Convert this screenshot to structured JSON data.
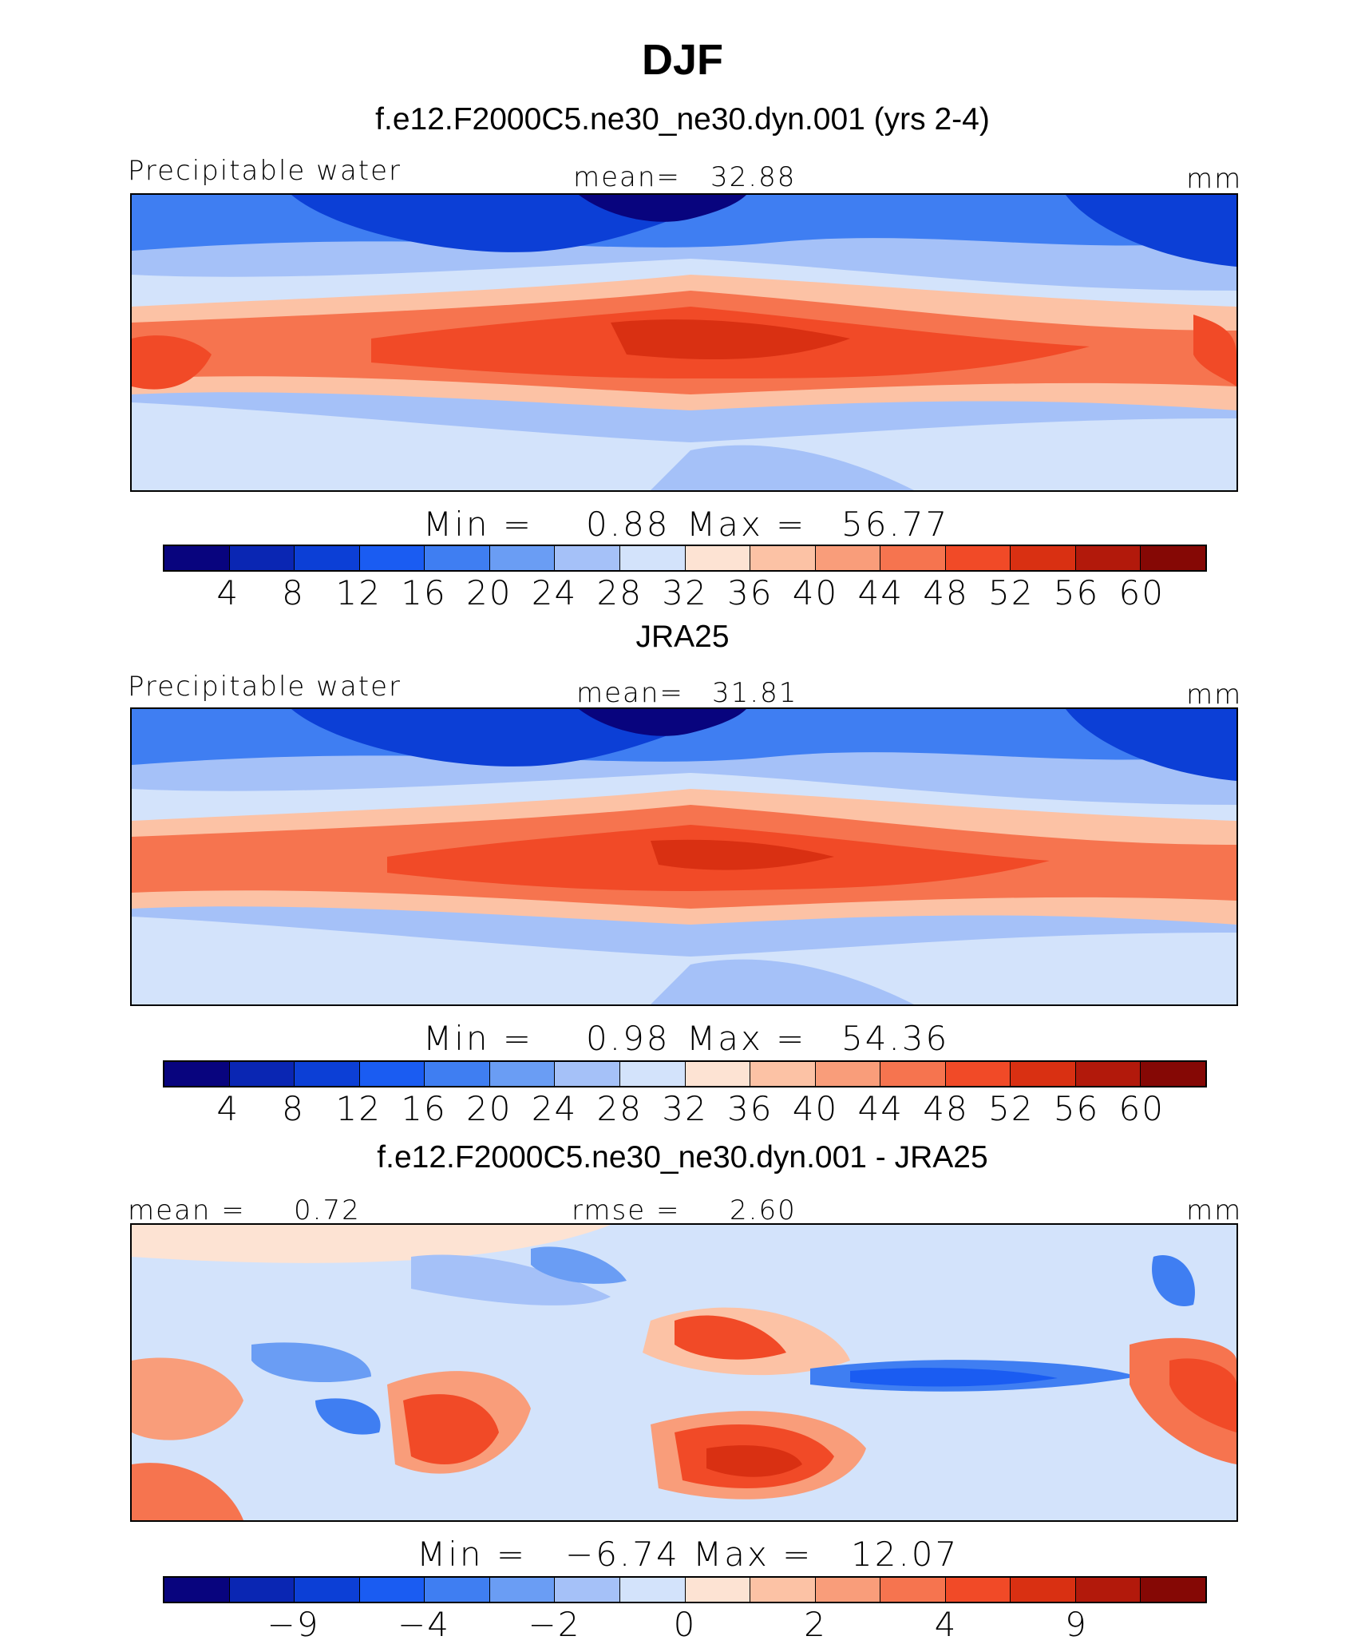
{
  "title": "DJF",
  "chart_data": [
    {
      "type": "heatmap",
      "title": "f.e12.F2000C5.ne30_ne30.dyn.001 (yrs 2-4)",
      "variable": "Precipitable water",
      "stat_label": "mean=",
      "stat_value": "32.88",
      "units": "mm",
      "min_label": "Min  =",
      "min_value": "0.88",
      "max_label": "Max  =",
      "max_value": "56.77",
      "colorbar_levels": [
        "4",
        "8",
        "12",
        "16",
        "20",
        "24",
        "28",
        "32",
        "36",
        "40",
        "44",
        "48",
        "52",
        "56",
        "60"
      ]
    },
    {
      "type": "heatmap",
      "title": "JRA25",
      "variable": "Precipitable water",
      "stat_label": "mean=",
      "stat_value": "31.81",
      "units": "mm",
      "min_label": "Min  =",
      "min_value": "0.98",
      "max_label": "Max  =",
      "max_value": "54.36",
      "colorbar_levels": [
        "4",
        "8",
        "12",
        "16",
        "20",
        "24",
        "28",
        "32",
        "36",
        "40",
        "44",
        "48",
        "52",
        "56",
        "60"
      ]
    },
    {
      "type": "heatmap",
      "title": "f.e12.F2000C5.ne30_ne30.dyn.001 - JRA25",
      "mean_label": "mean =",
      "mean_value": "0.72",
      "rmse_label": "rmse =",
      "rmse_value": "2.60",
      "units": "mm",
      "min_label": "Min  =",
      "min_value": "−6.74",
      "max_label": "Max  =",
      "max_value": "12.07",
      "colorbar_levels": [
        "−9",
        "−4",
        "−2",
        "0",
        "2",
        "4",
        "9"
      ]
    }
  ],
  "palette": [
    "#08047e",
    "#0a26b3",
    "#0c3fd6",
    "#1a5cf2",
    "#3f7ef2",
    "#6a9df4",
    "#a5c1f8",
    "#d3e3fb",
    "#fde3d3",
    "#fcc2a5",
    "#f99d7a",
    "#f6744f",
    "#f14a27",
    "#d93012",
    "#b2190b",
    "#850805"
  ]
}
